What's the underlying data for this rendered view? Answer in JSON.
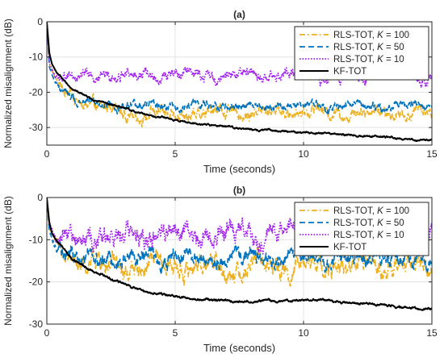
{
  "chart_data": [
    {
      "type": "line",
      "title": "(a)",
      "xlabel": "Time (seconds)",
      "ylabel": "Normalized misalignment (dB)",
      "xlim": [
        0,
        15
      ],
      "ylim": [
        -35,
        0
      ],
      "xticks": [
        0,
        5,
        10,
        15
      ],
      "yticks": [
        0,
        -10,
        -20,
        -30
      ],
      "grid": true,
      "legend_position": "top-right",
      "series": [
        {
          "name": "RLS-TOT, K = 100",
          "legend_prefix": "RLS-TOT, ",
          "legend_k": "K",
          "legend_suffix": " = 100",
          "color": "#EDB120",
          "dash": "dash-dot",
          "x": [
            0,
            0.1,
            0.3,
            0.6,
            1,
            1.5,
            2,
            2.5,
            3,
            4,
            5,
            6,
            7,
            8,
            9,
            10,
            11,
            12,
            13,
            14,
            15
          ],
          "y": [
            0,
            -12,
            -16,
            -19,
            -21.5,
            -23,
            -24,
            -25,
            -26,
            -26.5,
            -26.5,
            -26,
            -25.5,
            -26,
            -25.5,
            -25,
            -26,
            -25.5,
            -26,
            -25.5,
            -26
          ],
          "noise": 1.6
        },
        {
          "name": "RLS-TOT, K = 50",
          "legend_prefix": "RLS-TOT, ",
          "legend_k": "K",
          "legend_suffix": " = 50",
          "color": "#0072BD",
          "dash": "dashed",
          "x": [
            0,
            0.1,
            0.3,
            0.6,
            1,
            1.5,
            2,
            3,
            4,
            5,
            6,
            7,
            8,
            9,
            10,
            11,
            12,
            13,
            14,
            15
          ],
          "y": [
            0,
            -13,
            -17,
            -19.5,
            -21,
            -22.5,
            -23.5,
            -24,
            -24,
            -24,
            -23.5,
            -24,
            -24,
            -23.5,
            -24,
            -24,
            -23.5,
            -24,
            -24,
            -24
          ],
          "noise": 1.1
        },
        {
          "name": "RLS-TOT, K = 10",
          "legend_prefix": "RLS-TOT, ",
          "legend_k": "K",
          "legend_suffix": " = 10",
          "color": "#A020F0",
          "dash": "dotted",
          "x": [
            0,
            0.1,
            0.3,
            0.6,
            1,
            2,
            3,
            4,
            5,
            6,
            7,
            8,
            9,
            10,
            11,
            12,
            13,
            14,
            15
          ],
          "y": [
            0,
            -12,
            -14.5,
            -15.5,
            -15.5,
            -15,
            -15.5,
            -15.5,
            -15,
            -15,
            -15.5,
            -15,
            -15.5,
            -15,
            -15.5,
            -15.5,
            -15,
            -15,
            -15.5
          ],
          "noise": 1.5
        },
        {
          "name": "KF-TOT",
          "legend_prefix": "KF-TOT",
          "legend_k": "",
          "legend_suffix": "",
          "color": "#000000",
          "dash": "solid",
          "x": [
            0,
            0.1,
            0.2,
            0.4,
            0.7,
            1,
            1.5,
            2,
            2.5,
            3,
            4,
            5,
            6,
            7,
            8,
            9,
            10,
            11,
            12,
            13,
            14,
            15
          ],
          "y": [
            0,
            -9,
            -12,
            -14.5,
            -17,
            -19,
            -21,
            -22.5,
            -23.5,
            -24.5,
            -26.5,
            -28,
            -29,
            -29.8,
            -30.5,
            -31,
            -31.3,
            -31.8,
            -32.2,
            -32.7,
            -33.2,
            -33.8
          ],
          "noise": 0.25
        }
      ]
    },
    {
      "type": "line",
      "title": "(b)",
      "xlabel": "Time (seconds)",
      "ylabel": "Normalized misalignment (dB)",
      "xlim": [
        0,
        15
      ],
      "ylim": [
        -30,
        0
      ],
      "xticks": [
        0,
        5,
        10,
        15
      ],
      "yticks": [
        0,
        -10,
        -20,
        -30
      ],
      "grid": true,
      "legend_position": "top-right",
      "series": [
        {
          "name": "RLS-TOT, K = 100",
          "legend_prefix": "RLS-TOT, ",
          "legend_k": "K",
          "legend_suffix": " = 100",
          "color": "#EDB120",
          "dash": "dash-dot",
          "x": [
            0,
            0.1,
            0.3,
            0.6,
            1,
            1.5,
            2,
            3,
            4,
            5,
            6,
            7,
            8,
            9,
            10,
            11,
            12,
            13,
            14,
            15
          ],
          "y": [
            0,
            -8,
            -11,
            -13,
            -14.5,
            -15.5,
            -16,
            -16.5,
            -16.5,
            -16,
            -16.5,
            -17,
            -16,
            -16.5,
            -16.5,
            -16,
            -16.5,
            -16,
            -16.5,
            -16.5
          ],
          "noise": 2.2
        },
        {
          "name": "RLS-TOT, K = 50",
          "legend_prefix": "RLS-TOT, ",
          "legend_k": "K",
          "legend_suffix": " = 50",
          "color": "#0072BD",
          "dash": "dashed",
          "x": [
            0,
            0.1,
            0.3,
            0.6,
            1,
            1.5,
            2,
            3,
            4,
            5,
            6,
            7,
            8,
            9,
            10,
            11,
            12,
            13,
            14,
            15
          ],
          "y": [
            0,
            -8,
            -11,
            -12.5,
            -13.5,
            -14,
            -14.5,
            -14.5,
            -14.5,
            -14,
            -14.5,
            -14.5,
            -14,
            -14.5,
            -14,
            -14.5,
            -14.5,
            -14,
            -14.5,
            -14.5
          ],
          "noise": 1.7
        },
        {
          "name": "RLS-TOT, K = 10",
          "legend_prefix": "RLS-TOT, ",
          "legend_k": "K",
          "legend_suffix": " = 10",
          "color": "#A020F0",
          "dash": "dotted",
          "x": [
            0,
            0.1,
            0.3,
            0.6,
            1,
            2,
            3,
            4,
            5,
            6,
            7,
            8,
            9,
            10,
            11,
            12,
            13,
            14,
            15
          ],
          "y": [
            0,
            -6,
            -8,
            -9,
            -9.5,
            -9,
            -8.5,
            -9,
            -8.5,
            -9,
            -8.5,
            -9,
            -9,
            -8.5,
            -9,
            -9,
            -8.5,
            -9,
            -9
          ],
          "noise": 2.3
        },
        {
          "name": "KF-TOT",
          "legend_prefix": "KF-TOT",
          "legend_k": "",
          "legend_suffix": "",
          "color": "#000000",
          "dash": "solid",
          "x": [
            0,
            0.1,
            0.2,
            0.4,
            0.7,
            1,
            1.5,
            2,
            2.5,
            3,
            3.5,
            4,
            5,
            6,
            7,
            8,
            9,
            10,
            11,
            12,
            13,
            14,
            15
          ],
          "y": [
            0,
            -6,
            -8.5,
            -10.5,
            -12.5,
            -14.5,
            -16.5,
            -18,
            -19.5,
            -20.5,
            -21.5,
            -22.5,
            -23.5,
            -24.2,
            -24.5,
            -24.7,
            -24.5,
            -24.2,
            -24.5,
            -25,
            -25.5,
            -26,
            -26.5
          ],
          "noise": 0.25
        }
      ]
    }
  ]
}
